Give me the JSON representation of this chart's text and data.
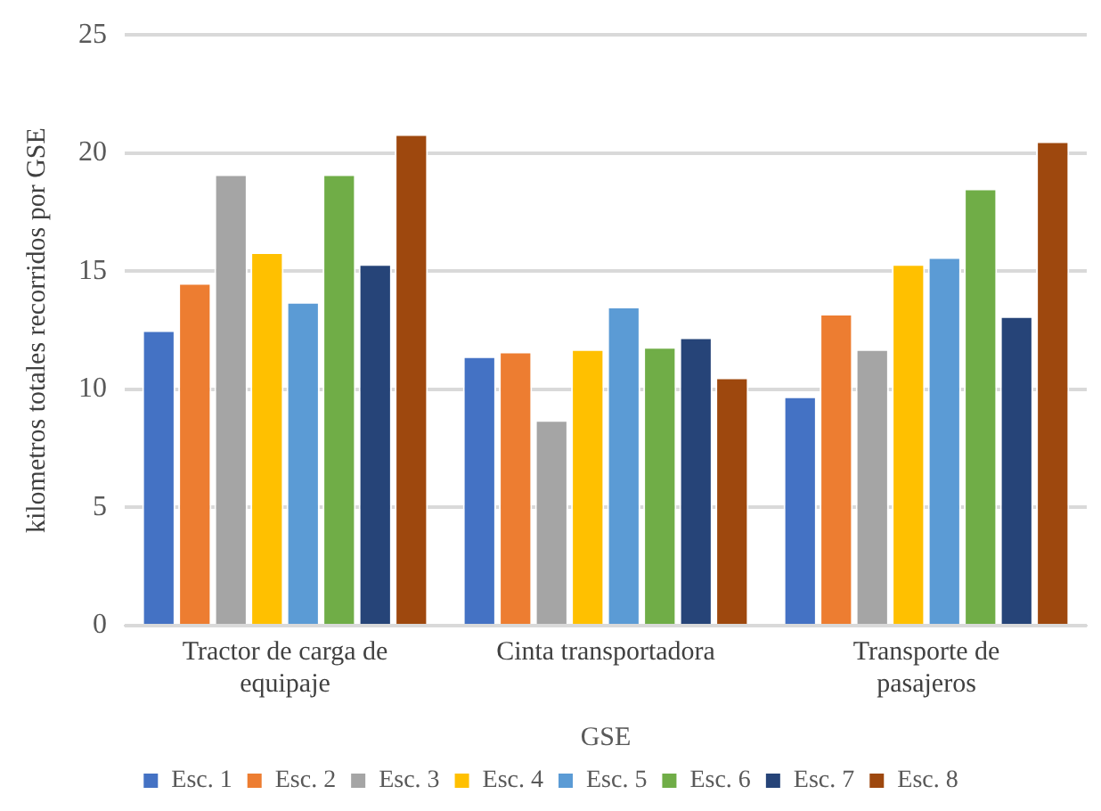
{
  "chart_data": {
    "type": "bar",
    "xlabel": "GSE",
    "ylabel": "kilometros totales recorridos por GSE",
    "categories": [
      "Tractor de carga de equipaje",
      "Cinta transportadora",
      "Transporte de pasajeros"
    ],
    "series": [
      {
        "name": "Esc. 1",
        "color": "#4472c4",
        "values": [
          12.5,
          11.4,
          9.7
        ]
      },
      {
        "name": "Esc. 2",
        "color": "#ed7d31",
        "values": [
          14.5,
          11.6,
          13.2
        ]
      },
      {
        "name": "Esc. 3",
        "color": "#a5a5a5",
        "values": [
          19.1,
          8.7,
          11.7
        ]
      },
      {
        "name": "Esc. 4",
        "color": "#ffc000",
        "values": [
          15.8,
          11.7,
          15.3
        ]
      },
      {
        "name": "Esc. 5",
        "color": "#5b9bd5",
        "values": [
          13.7,
          13.5,
          15.6
        ]
      },
      {
        "name": "Esc. 6",
        "color": "#70ad47",
        "values": [
          19.1,
          11.8,
          18.5
        ]
      },
      {
        "name": "Esc. 7",
        "color": "#264478",
        "values": [
          15.3,
          12.2,
          13.1
        ]
      },
      {
        "name": "Esc. 8",
        "color": "#9e480e",
        "values": [
          20.8,
          10.5,
          20.5
        ]
      }
    ],
    "ylim": [
      0,
      25
    ],
    "yticks": [
      0,
      5,
      10,
      15,
      20,
      25
    ],
    "grid": "y",
    "legend": "bottom"
  }
}
